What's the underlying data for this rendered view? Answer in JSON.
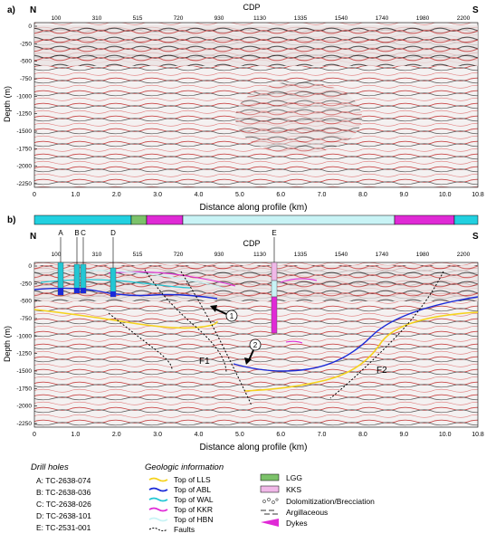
{
  "panel_a": {
    "label": "a)",
    "north": "N",
    "south": "S",
    "top_axis_title": "CDP",
    "cdp_ticks": [
      "100",
      "310",
      "515",
      "720",
      "930",
      "1130",
      "1335",
      "1540",
      "1740",
      "1980",
      "2200"
    ],
    "depth_label": "Depth (m)",
    "depth_ticks": [
      "0",
      "-250",
      "-500",
      "-750",
      "-1000",
      "-1250",
      "-1500",
      "-1750",
      "-2000",
      "-2250"
    ],
    "distance_ticks": [
      "0",
      "1.0",
      "2.0",
      "3.0",
      "4.0",
      "5.0",
      "6.0",
      "7.0",
      "8.0",
      "9.0",
      "10.0",
      "10.8"
    ],
    "distance_label": "Distance along profile (km)"
  },
  "panel_b": {
    "label": "b)",
    "north": "N",
    "south": "S",
    "top_axis_title": "CDP",
    "cdp_ticks": [
      "100",
      "310",
      "515",
      "720",
      "930",
      "1130",
      "1335",
      "1540",
      "1740",
      "1980",
      "2200"
    ],
    "depth_label": "Depth (m)",
    "depth_ticks": [
      "0",
      "-250",
      "-500",
      "-750",
      "-1000",
      "-1250",
      "-1500",
      "-1750",
      "-2000",
      "-2250"
    ],
    "distance_ticks": [
      "0",
      "1.0",
      "2.0",
      "3.0",
      "4.0",
      "5.0",
      "6.0",
      "7.0",
      "8.0",
      "9.0",
      "10.0",
      "10.8"
    ],
    "distance_label": "Distance along profile (km)",
    "drill_hole_letters": [
      "A",
      "B",
      "C",
      "D",
      "E"
    ],
    "fault_labels": [
      "F1",
      "F2"
    ],
    "callouts": [
      "1",
      "2"
    ]
  },
  "legend": {
    "drill_title": "Drill holes",
    "drill_holes": [
      "A: TC-2638-074",
      "B: TC-2638-036",
      "C: TC-2638-026",
      "D: TC-2638-101",
      "E: TC-2531-001"
    ],
    "geo_title": "Geologic information",
    "lines": [
      {
        "label": "Top of LLS",
        "color": "#f5d21c"
      },
      {
        "label": "Top of ABL",
        "color": "#1a2ad8"
      },
      {
        "label": "Top of WAL",
        "color": "#22c7d4"
      },
      {
        "label": "Top of KKR",
        "color": "#e02ad6"
      },
      {
        "label": "Top of HBN",
        "color": "#c8f3f5"
      },
      {
        "label": "Faults",
        "color": "#000000"
      }
    ],
    "boxes": [
      {
        "label": "LGG",
        "color": "#7cc26a"
      },
      {
        "label": "KKS",
        "color": "#f0b8e8"
      }
    ],
    "symbols": [
      {
        "label": "Dolomitization/Brecciation"
      },
      {
        "label": "Argillaceous"
      },
      {
        "label": "Dykes",
        "color": "#e02ad6"
      }
    ]
  },
  "colors": {
    "seismic_red": "#d63a3a",
    "seismic_black": "#222222",
    "cyan_bar": "#22d0e0",
    "light_cyan_bar": "#c8f3f5",
    "magenta_bar": "#e02ad6",
    "green_bar": "#7cc26a"
  }
}
